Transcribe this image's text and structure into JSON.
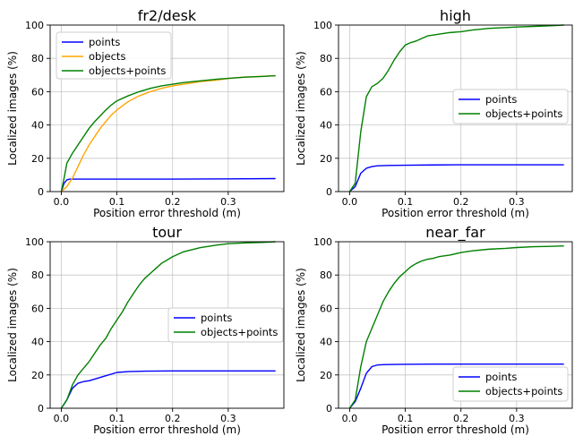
{
  "chart_data": [
    {
      "type": "line",
      "title": "fr2/desk",
      "xlabel": "Position error threshold (m)",
      "ylabel": "Localized images (%)",
      "xlim": [
        -0.02,
        0.4
      ],
      "ylim": [
        0,
        100
      ],
      "xticks": [
        0.0,
        0.1,
        0.2,
        0.3
      ],
      "xtick_labels": [
        "0.0",
        "0.1",
        "0.2",
        "0.3"
      ],
      "yticks": [
        0,
        20,
        40,
        60,
        80,
        100
      ],
      "ytick_labels": [
        "0",
        "20",
        "40",
        "60",
        "80",
        "100"
      ],
      "grid": true,
      "legend": "upper-left",
      "series": [
        {
          "name": "points",
          "color": "#0000ff",
          "x": [
            0.0,
            0.005,
            0.01,
            0.015,
            0.02,
            0.05,
            0.1,
            0.2,
            0.3,
            0.385
          ],
          "y": [
            0,
            5,
            7,
            7.5,
            7.5,
            7.5,
            7.5,
            7.5,
            7.6,
            7.8
          ]
        },
        {
          "name": "objects",
          "color": "#ffa500",
          "x": [
            0.0,
            0.01,
            0.02,
            0.03,
            0.04,
            0.05,
            0.06,
            0.07,
            0.08,
            0.09,
            0.1,
            0.12,
            0.14,
            0.16,
            0.18,
            0.2,
            0.22,
            0.25,
            0.28,
            0.3,
            0.33,
            0.36,
            0.385
          ],
          "y": [
            0,
            3,
            8,
            15,
            22,
            28,
            33,
            38,
            42,
            46,
            49,
            54,
            57.5,
            60,
            62,
            63.5,
            64.5,
            66,
            67,
            68,
            68.8,
            69.2,
            69.6
          ]
        },
        {
          "name": "objects+points",
          "color": "#008000",
          "x": [
            0.0,
            0.005,
            0.01,
            0.02,
            0.03,
            0.04,
            0.05,
            0.06,
            0.07,
            0.08,
            0.09,
            0.1,
            0.12,
            0.14,
            0.16,
            0.18,
            0.2,
            0.22,
            0.25,
            0.28,
            0.3,
            0.33,
            0.36,
            0.385
          ],
          "y": [
            0,
            8,
            17,
            23,
            28,
            33,
            38,
            42,
            45.5,
            49,
            52,
            54.5,
            57.5,
            60,
            62,
            63.5,
            64.5,
            65.5,
            66.5,
            67.5,
            68,
            68.7,
            69.1,
            69.6
          ]
        }
      ]
    },
    {
      "type": "line",
      "title": "high",
      "xlabel": "Position error threshold (m)",
      "ylabel": "Localized images (%)",
      "xlim": [
        -0.02,
        0.4
      ],
      "ylim": [
        0,
        100
      ],
      "xticks": [
        0.0,
        0.1,
        0.2,
        0.3
      ],
      "xtick_labels": [
        "0.0",
        "0.1",
        "0.2",
        "0.3"
      ],
      "yticks": [
        0,
        20,
        40,
        60,
        80,
        100
      ],
      "ytick_labels": [
        "0",
        "20",
        "40",
        "60",
        "80",
        "100"
      ],
      "grid": true,
      "legend": "center-right",
      "series": [
        {
          "name": "points",
          "color": "#0000ff",
          "x": [
            0.0,
            0.01,
            0.02,
            0.03,
            0.04,
            0.05,
            0.07,
            0.1,
            0.15,
            0.2,
            0.3,
            0.385
          ],
          "y": [
            0,
            3,
            11,
            14,
            15,
            15.5,
            15.7,
            15.8,
            16,
            16.1,
            16.1,
            16.1
          ]
        },
        {
          "name": "objects+points",
          "color": "#008000",
          "x": [
            0.0,
            0.01,
            0.02,
            0.03,
            0.04,
            0.05,
            0.06,
            0.07,
            0.08,
            0.09,
            0.1,
            0.11,
            0.12,
            0.13,
            0.14,
            0.15,
            0.16,
            0.18,
            0.2,
            0.22,
            0.25,
            0.28,
            0.3,
            0.33,
            0.36,
            0.385
          ],
          "y": [
            0,
            5,
            36,
            57,
            63,
            65,
            68,
            73,
            79,
            84,
            88,
            89.5,
            90.5,
            92,
            93.5,
            94,
            94.5,
            95.5,
            96,
            97,
            98,
            98.5,
            98.8,
            99.2,
            99.6,
            100
          ]
        }
      ]
    },
    {
      "type": "line",
      "title": "tour",
      "xlabel": "Position error threshold (m)",
      "ylabel": "Localized images (%)",
      "xlim": [
        -0.02,
        0.4
      ],
      "ylim": [
        0,
        100
      ],
      "xticks": [
        0.0,
        0.1,
        0.2,
        0.3
      ],
      "xtick_labels": [
        "0.0",
        "0.1",
        "0.2",
        "0.3"
      ],
      "yticks": [
        0,
        20,
        40,
        60,
        80,
        100
      ],
      "ytick_labels": [
        "0",
        "20",
        "40",
        "60",
        "80",
        "100"
      ],
      "grid": true,
      "legend": "center-right",
      "series": [
        {
          "name": "points",
          "color": "#0000ff",
          "x": [
            0.0,
            0.01,
            0.02,
            0.03,
            0.04,
            0.05,
            0.06,
            0.07,
            0.08,
            0.09,
            0.1,
            0.12,
            0.15,
            0.2,
            0.3,
            0.385
          ],
          "y": [
            0,
            5,
            12,
            15,
            16,
            16.5,
            17.5,
            18.5,
            19.5,
            20.5,
            21.5,
            22,
            22.3,
            22.4,
            22.4,
            22.4
          ]
        },
        {
          "name": "objects+points",
          "color": "#008000",
          "x": [
            0.0,
            0.01,
            0.02,
            0.03,
            0.04,
            0.05,
            0.06,
            0.07,
            0.08,
            0.09,
            0.1,
            0.11,
            0.12,
            0.13,
            0.14,
            0.15,
            0.16,
            0.18,
            0.2,
            0.22,
            0.25,
            0.28,
            0.3,
            0.33,
            0.36,
            0.385
          ],
          "y": [
            0,
            5,
            14,
            20,
            24,
            28,
            33,
            38,
            42,
            48,
            53,
            58,
            64,
            69,
            74,
            78,
            81,
            87,
            91,
            94,
            96.5,
            98,
            98.8,
            99.3,
            99.6,
            100
          ]
        }
      ]
    },
    {
      "type": "line",
      "title": "near_far",
      "xlabel": "Position error threshold (m)",
      "ylabel": "Localized images (%)",
      "xlim": [
        -0.02,
        0.4
      ],
      "ylim": [
        0,
        100
      ],
      "xticks": [
        0.0,
        0.1,
        0.2,
        0.3
      ],
      "xtick_labels": [
        "0.0",
        "0.1",
        "0.2",
        "0.3"
      ],
      "yticks": [
        0,
        20,
        40,
        60,
        80,
        100
      ],
      "ytick_labels": [
        "0",
        "20",
        "40",
        "60",
        "80",
        "100"
      ],
      "grid": true,
      "legend": "lower-right",
      "series": [
        {
          "name": "points",
          "color": "#0000ff",
          "x": [
            0.0,
            0.01,
            0.02,
            0.03,
            0.04,
            0.05,
            0.06,
            0.08,
            0.1,
            0.15,
            0.2,
            0.3,
            0.385
          ],
          "y": [
            0,
            4,
            12,
            21,
            25,
            26,
            26.2,
            26.3,
            26.4,
            26.5,
            26.5,
            26.5,
            26.5
          ]
        },
        {
          "name": "objects+points",
          "color": "#008000",
          "x": [
            0.0,
            0.01,
            0.02,
            0.03,
            0.04,
            0.05,
            0.06,
            0.07,
            0.08,
            0.09,
            0.1,
            0.11,
            0.12,
            0.13,
            0.14,
            0.15,
            0.16,
            0.18,
            0.2,
            0.22,
            0.25,
            0.28,
            0.3,
            0.33,
            0.36,
            0.385
          ],
          "y": [
            0,
            5,
            25,
            40,
            48,
            56,
            64,
            70,
            75,
            79,
            82,
            85,
            87,
            88.5,
            89.5,
            90,
            91,
            92,
            93.5,
            94.5,
            95.5,
            96,
            96.5,
            97,
            97.2,
            97.5
          ]
        }
      ]
    }
  ]
}
